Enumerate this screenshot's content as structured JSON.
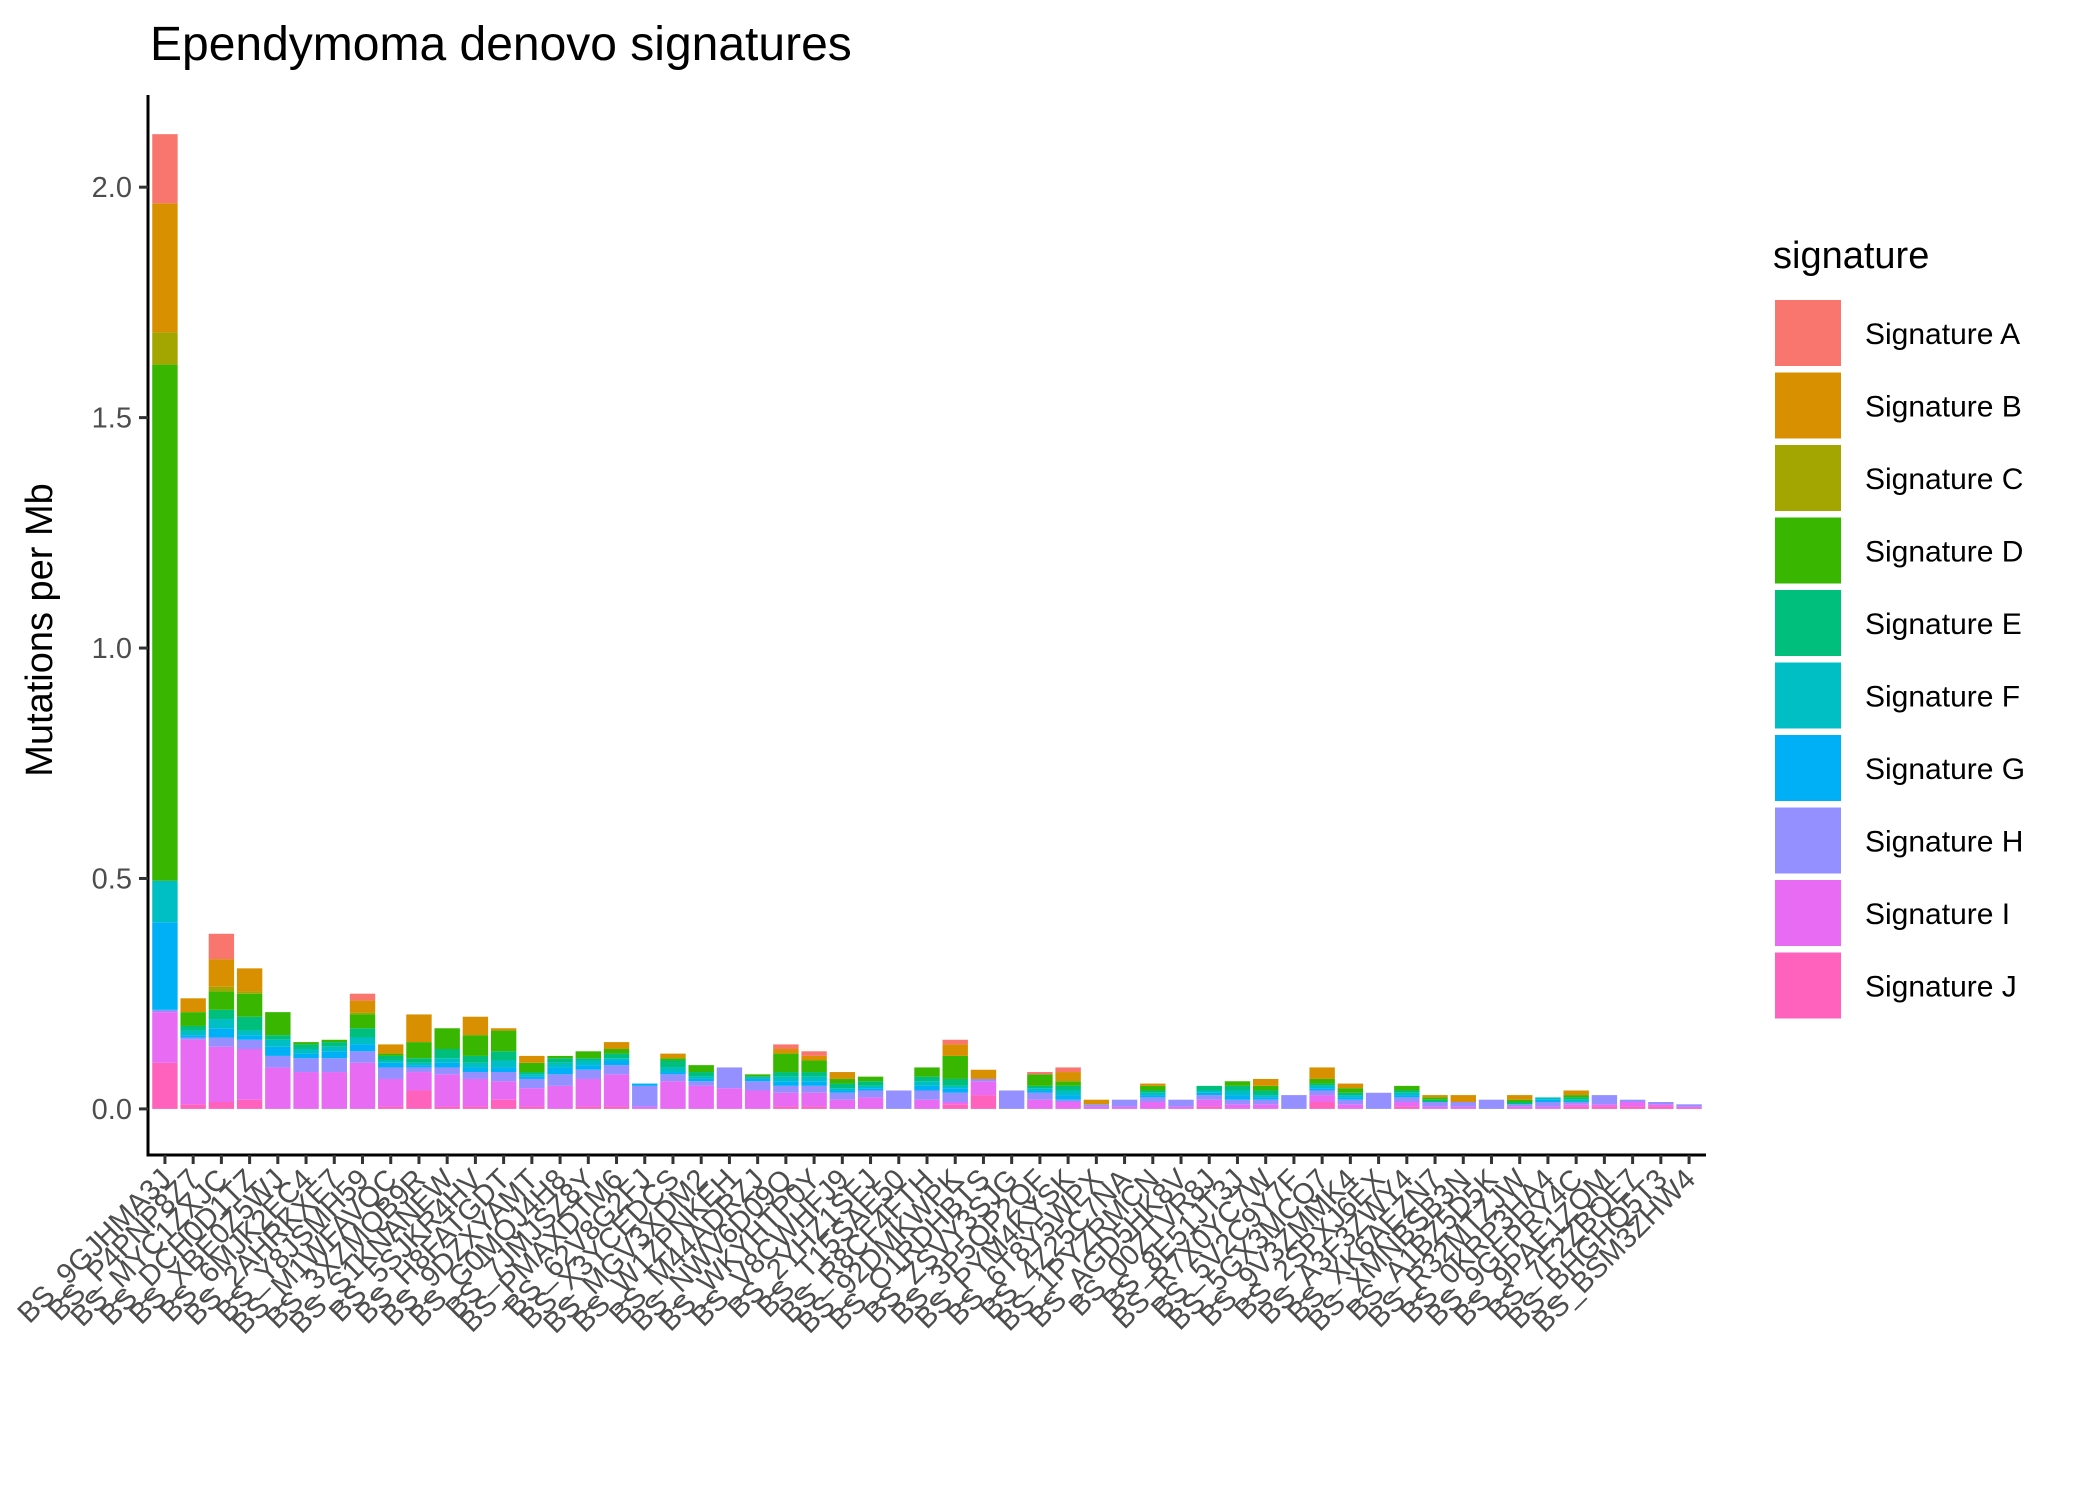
{
  "chart_data": {
    "type": "bar",
    "stacked": true,
    "title": "Ependymoma denovo signatures",
    "ylabel": "Mutations per Mb",
    "xlabel": "",
    "ylim": [
      -0.1,
      2.2
    ],
    "yticks": [
      0.0,
      0.5,
      1.0,
      1.5,
      2.0
    ],
    "ytick_labels": [
      "0.0",
      "0.5",
      "1.0",
      "1.5",
      "2.0"
    ],
    "grid": false,
    "legend": {
      "title": "signature",
      "position": "right"
    },
    "categories": [
      "BS_9GJHMA3J",
      "BS_P4PNP8Z7",
      "BS_MYC1ZXJC",
      "BS_DCH0D1TZ",
      "BS_XBE0Z5WJ",
      "BS_6MJK2EC4",
      "BS_2AHRKXE7",
      "BS_Y8JSMH59",
      "BS_M1WFAVQC",
      "BS_3XZMQB9R",
      "BS_S1KNANEW",
      "BS_5SJKR4HV",
      "BS_H8FATGDT",
      "BS_9DZXYAMT",
      "BS_G0MQJ4H8",
      "BS_7JMJSZ8Y",
      "BS_PMAXDTM6",
      "BS_62V8G2FJ",
      "BS_X3YCEDCS",
      "BS_MGV3XDM2",
      "BS_W1ZPNKEH",
      "BS_M44ADRZJ",
      "BS_NWV6D09Q",
      "BS_WKYHTP0Y",
      "BS_V8CWHFJ9",
      "BS_2YHZ1SFJ",
      "BS_T15SAE50",
      "BS_R8CF4FTH",
      "BS_92DMKWPK",
      "BS_O1RDHBTS",
      "BS_ZSVY3SJG",
      "BS_3P5QP2QF",
      "BS_PYM4KYSK",
      "BS_6T8Y5WPX",
      "BS_4Z25C7NA",
      "BS_1PYZRMCN",
      "BS_AGD5HK8V",
      "BS_00ZTVR8J",
      "BS_8E51JT3J",
      "BS_R7X0YC7W",
      "BS_5V2C9Y7F",
      "BS_5GX3MCQ7",
      "BS_9V3ZMMK4",
      "BS_2SPXJ6EX",
      "BS_A3F3ZWY4",
      "BS_XK6AEZN7",
      "BS_XMNBSB3N",
      "BS_A1BZ5D5K",
      "BS_R32MTZJW",
      "BS_0KRP3HA4",
      "BS_9GFPRY4C",
      "BS_9PAE1ZQM",
      "BS_7F2ZBQE7",
      "BS_BHGHQ5T3",
      "BS_BSM3ZHW4"
    ],
    "colors": {
      "Signature A": "#F8766D",
      "Signature B": "#D89000",
      "Signature C": "#A3A500",
      "Signature D": "#39B600",
      "Signature E": "#00BF7D",
      "Signature F": "#00BFC4",
      "Signature G": "#00B0F6",
      "Signature H": "#9590FF",
      "Signature I": "#E76BF3",
      "Signature J": "#FF62BC"
    },
    "series": [
      {
        "name": "Signature A",
        "values": [
          0.15,
          0,
          0.055,
          0,
          0,
          0,
          0,
          0.015,
          0,
          0,
          0,
          0,
          0,
          0,
          0,
          0,
          0,
          0,
          0,
          0,
          0,
          0,
          0.01,
          0.01,
          0,
          0,
          0,
          0,
          0.01,
          0,
          0,
          0.005,
          0.01,
          0,
          0,
          0,
          0,
          0,
          0,
          0,
          0,
          0,
          0,
          0,
          0,
          0,
          0,
          0,
          0,
          0,
          0,
          0,
          0,
          0,
          0
        ]
      },
      {
        "name": "Signature B",
        "values": [
          0.28,
          0.03,
          0.06,
          0.05,
          0,
          0,
          0,
          0.025,
          0.02,
          0.06,
          0,
          0.04,
          0.005,
          0.015,
          0,
          0,
          0.015,
          0,
          0.01,
          0,
          0,
          0,
          0.01,
          0.01,
          0.015,
          0,
          0,
          0,
          0.025,
          0.02,
          0,
          0,
          0.02,
          0.01,
          0,
          0.005,
          0,
          0,
          0,
          0.015,
          0,
          0.025,
          0.01,
          0,
          0,
          0.005,
          0.015,
          0,
          0.01,
          0,
          0.01,
          0,
          0,
          0,
          0
        ]
      },
      {
        "name": "Signature C",
        "values": [
          0.07,
          0,
          0.01,
          0.005,
          0,
          0,
          0,
          0.005,
          0,
          0,
          0,
          0,
          0,
          0,
          0,
          0,
          0,
          0,
          0,
          0,
          0,
          0,
          0,
          0,
          0,
          0,
          0,
          0,
          0,
          0,
          0,
          0,
          0,
          0,
          0,
          0,
          0,
          0,
          0,
          0,
          0,
          0,
          0,
          0,
          0,
          0,
          0,
          0,
          0,
          0,
          0,
          0,
          0,
          0,
          0
        ]
      },
      {
        "name": "Signature D",
        "values": [
          1.12,
          0.03,
          0.04,
          0.05,
          0.05,
          0.005,
          0.005,
          0.03,
          0.005,
          0.035,
          0.045,
          0.045,
          0.045,
          0.02,
          0.005,
          0.015,
          0.01,
          0,
          0.005,
          0.015,
          0,
          0.005,
          0.04,
          0.025,
          0.01,
          0.01,
          0,
          0.02,
          0.05,
          0,
          0,
          0.025,
          0.01,
          0,
          0,
          0.01,
          0,
          0,
          0.01,
          0.01,
          0,
          0.01,
          0.01,
          0,
          0.01,
          0.005,
          0,
          0,
          0.005,
          0,
          0.005,
          0,
          0,
          0,
          0
        ]
      },
      {
        "name": "Signature E",
        "values": [
          0,
          0.01,
          0.02,
          0.03,
          0.01,
          0.01,
          0.01,
          0.02,
          0.01,
          0.01,
          0.02,
          0.015,
          0.02,
          0.005,
          0.01,
          0.005,
          0.01,
          0,
          0.015,
          0.01,
          0,
          0,
          0.01,
          0.01,
          0.01,
          0.01,
          0,
          0.01,
          0.015,
          0,
          0,
          0.005,
          0.01,
          0,
          0,
          0.005,
          0,
          0.01,
          0.01,
          0.01,
          0,
          0.005,
          0.005,
          0,
          0.005,
          0.005,
          0,
          0,
          0.005,
          0,
          0.005,
          0,
          0,
          0,
          0
        ]
      },
      {
        "name": "Signature F",
        "values": [
          0.09,
          0.01,
          0.02,
          0.01,
          0.015,
          0.01,
          0.01,
          0.015,
          0.005,
          0.005,
          0.01,
          0.01,
          0.015,
          0.005,
          0.01,
          0.01,
          0.005,
          0,
          0.01,
          0.005,
          0,
          0.005,
          0.01,
          0.01,
          0.005,
          0.005,
          0,
          0.01,
          0.005,
          0,
          0,
          0.005,
          0.01,
          0,
          0,
          0.005,
          0,
          0.005,
          0.01,
          0.005,
          0,
          0.005,
          0.005,
          0,
          0.005,
          0,
          0,
          0,
          0,
          0.005,
          0.005,
          0,
          0,
          0,
          0
        ]
      },
      {
        "name": "Signature G",
        "values": [
          0.19,
          0.005,
          0.02,
          0.01,
          0.02,
          0.01,
          0.015,
          0.015,
          0.01,
          0.005,
          0.01,
          0.01,
          0.01,
          0.005,
          0.015,
          0.01,
          0.01,
          0.005,
          0.005,
          0.005,
          0,
          0.005,
          0.01,
          0.01,
          0.005,
          0.005,
          0,
          0.01,
          0.01,
          0,
          0,
          0.005,
          0.01,
          0,
          0,
          0.005,
          0,
          0.005,
          0.01,
          0.005,
          0,
          0.005,
          0.005,
          0,
          0.005,
          0,
          0,
          0,
          0,
          0.005,
          0,
          0,
          0,
          0,
          0
        ]
      },
      {
        "name": "Signature H",
        "values": [
          0.005,
          0.005,
          0.02,
          0.02,
          0.025,
          0.03,
          0.03,
          0.025,
          0.025,
          0.01,
          0.015,
          0.015,
          0.02,
          0.02,
          0.025,
          0.02,
          0.02,
          0.045,
          0.015,
          0.01,
          0.045,
          0.02,
          0.015,
          0.015,
          0.015,
          0.015,
          0.04,
          0.02,
          0.02,
          0.005,
          0.04,
          0.015,
          0.005,
          0.005,
          0.015,
          0.01,
          0.015,
          0.01,
          0.01,
          0.01,
          0.03,
          0.01,
          0.01,
          0.035,
          0.01,
          0.01,
          0.01,
          0.02,
          0.005,
          0.01,
          0.005,
          0.02,
          0.005,
          0.005,
          0.005
        ]
      },
      {
        "name": "Signature I",
        "values": [
          0.11,
          0.14,
          0.12,
          0.11,
          0.09,
          0.08,
          0.08,
          0.1,
          0.06,
          0.04,
          0.07,
          0.06,
          0.04,
          0.04,
          0.05,
          0.06,
          0.07,
          0.005,
          0.06,
          0.05,
          0.045,
          0.04,
          0.03,
          0.03,
          0.02,
          0.025,
          0,
          0.02,
          0.005,
          0.03,
          0,
          0.02,
          0.015,
          0.005,
          0.005,
          0.015,
          0.005,
          0.015,
          0.01,
          0.01,
          0,
          0.015,
          0.01,
          0,
          0.01,
          0.005,
          0.005,
          0,
          0.005,
          0.005,
          0.005,
          0.005,
          0.01,
          0.005,
          0.003
        ]
      },
      {
        "name": "Signature J",
        "values": [
          0.1,
          0.01,
          0.015,
          0.02,
          0,
          0,
          0,
          0,
          0.005,
          0.04,
          0.005,
          0.005,
          0.02,
          0.005,
          0,
          0.005,
          0.005,
          0,
          0,
          0,
          0,
          0,
          0.005,
          0.005,
          0,
          0,
          0,
          0,
          0.01,
          0.03,
          0,
          0,
          0,
          0,
          0,
          0,
          0,
          0.005,
          0,
          0,
          0,
          0.015,
          0,
          0,
          0.005,
          0,
          0,
          0,
          0,
          0,
          0.005,
          0.005,
          0.005,
          0.005,
          0.002
        ]
      }
    ]
  }
}
